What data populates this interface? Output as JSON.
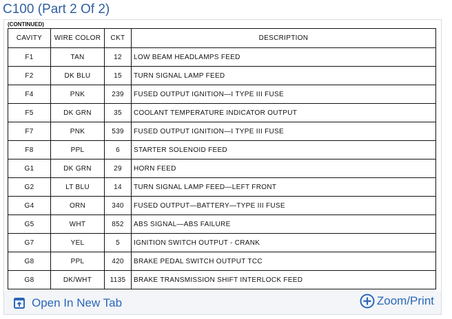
{
  "title": "C100 (Part 2 Of 2)",
  "continued": "(CONTINUED)",
  "columns": [
    "CAVITY",
    "WIRE COLOR",
    "CKT",
    "DESCRIPTION"
  ],
  "rows": [
    [
      "F1",
      "TAN",
      "12",
      "LOW BEAM HEADLAMPS FEED"
    ],
    [
      "F2",
      "DK BLU",
      "15",
      "TURN SIGNAL LAMP FEED"
    ],
    [
      "F4",
      "PNK",
      "239",
      "FUSED OUTPUT IGNITION—I TYPE III FUSE"
    ],
    [
      "F5",
      "DK GRN",
      "35",
      "COOLANT TEMPERATURE INDICATOR OUTPUT"
    ],
    [
      "F7",
      "PNK",
      "539",
      "FUSED OUTPUT IGNITION—I TYPE III FUSE"
    ],
    [
      "F8",
      "PPL",
      "6",
      "STARTER SOLENOID FEED"
    ],
    [
      "G1",
      "DK GRN",
      "29",
      "HORN FEED"
    ],
    [
      "G2",
      "LT BLU",
      "14",
      "TURN SIGNAL LAMP FEED—LEFT FRONT"
    ],
    [
      "G4",
      "ORN",
      "340",
      "FUSED OUTPUT—BATTERY—TYPE III FUSE"
    ],
    [
      "G5",
      "WHT",
      "852",
      "ABS SIGNAL—ABS FAILURE"
    ],
    [
      "G7",
      "YEL",
      "5",
      "IGNITION SWITCH OUTPUT - CRANK"
    ],
    [
      "G8",
      "PPL",
      "420",
      "BRAKE PEDAL SWITCH OUTPUT TCC"
    ],
    [
      "G8",
      "DK/WHT",
      "1135",
      "BRAKE TRANSMISSION SHIFT INTERLOCK FEED"
    ]
  ],
  "footer": {
    "open_label": "Open In New Tab",
    "open_icon": "open-new-tab-icon",
    "zoom_label": "Zoom/Print",
    "zoom_icon": "plus-circle-icon"
  },
  "colors": {
    "accent": "#2a66b8",
    "title": "#2f5f9e"
  }
}
